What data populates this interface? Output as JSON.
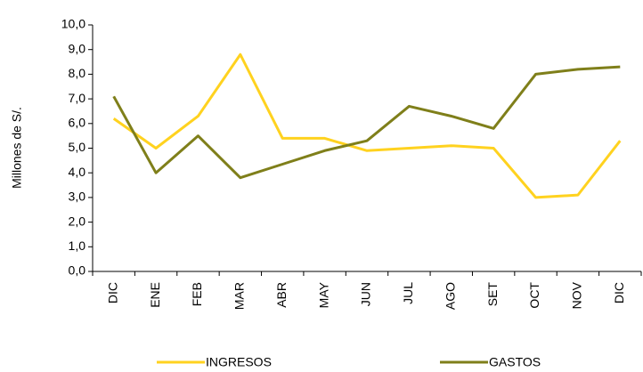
{
  "chart_data": {
    "type": "line",
    "y_label": "Millones de S/.",
    "categories": [
      "DIC",
      "ENE",
      "FEB",
      "MAR",
      "ABR",
      "MAY",
      "JUN",
      "JUL",
      "AGO",
      "SET",
      "OCT",
      "NOV",
      "DIC"
    ],
    "series": [
      {
        "name": "INGRESOS",
        "color": "#ffd21f",
        "values": [
          6.2,
          5.0,
          6.3,
          8.8,
          5.4,
          5.4,
          4.9,
          5.0,
          5.1,
          5.0,
          3.0,
          3.1,
          5.3
        ]
      },
      {
        "name": "GASTOS",
        "color": "#7f7f1a",
        "values": [
          7.1,
          4.0,
          5.5,
          3.8,
          4.35,
          4.9,
          5.3,
          6.7,
          6.3,
          5.8,
          8.0,
          8.2,
          8.3
        ]
      }
    ],
    "ylim": [
      0,
      10
    ],
    "yticks": [
      {
        "value": 0,
        "label": "0,0"
      },
      {
        "value": 1,
        "label": "1,0"
      },
      {
        "value": 2,
        "label": "2,0"
      },
      {
        "value": 3,
        "label": "3,0"
      },
      {
        "value": 4,
        "label": "4,0"
      },
      {
        "value": 5,
        "label": "5,0"
      },
      {
        "value": 6,
        "label": "6,0"
      },
      {
        "value": 7,
        "label": "7,0"
      },
      {
        "value": 8,
        "label": "8,0"
      },
      {
        "value": 9,
        "label": "9,0"
      },
      {
        "value": 10,
        "label": "10,0"
      }
    ],
    "grid": false,
    "legend": "bottom"
  }
}
